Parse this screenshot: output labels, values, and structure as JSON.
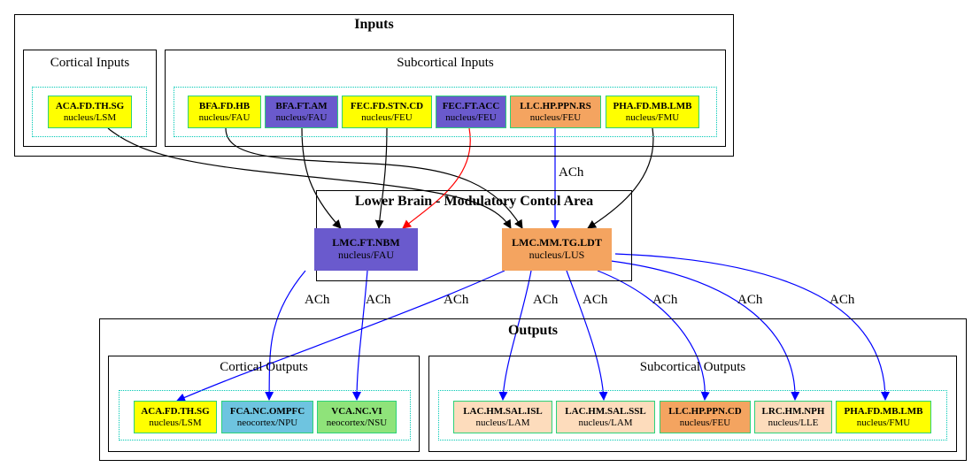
{
  "colors": {
    "yellow": "#ffff00",
    "slateblue": "#6a5acd",
    "sandybrown": "#f4a460",
    "bisque": "#fddcbc",
    "skyblue": "#6ec4e0",
    "lightgreen": "#8fe37a",
    "black_edge": "#000000",
    "blue_edge": "#0000ff",
    "red_edge": "#ff0000",
    "dotted_border": "#00c8b4"
  },
  "clusters": {
    "inputs": "Inputs",
    "cortical_inputs": "Cortical Inputs",
    "subcortical_inputs": "Subcortical Inputs",
    "lower_brain": "Lower Brain - Modulatory Contol Area",
    "outputs": "Outputs",
    "cortical_outputs": "Cortical Outputs",
    "subcortical_outputs": "Subcortical Outputs"
  },
  "nodes": {
    "in_aca": {
      "name": "ACA.FD.TH.SG",
      "sub": "nucleus/LSM"
    },
    "in_bfa": {
      "name": "BFA.FD.HB",
      "sub": "nucleus/FAU"
    },
    "in_bfa_ft": {
      "name": "BFA.FT.AM",
      "sub": "nucleus/FAU"
    },
    "in_fec_stn": {
      "name": "FEC.FD.STN.CD",
      "sub": "nucleus/FEU"
    },
    "in_fec_acc": {
      "name": "FEC.FT.ACC",
      "sub": "nucleus/FEU"
    },
    "in_llc": {
      "name": "LLC.HP.PPN.RS",
      "sub": "nucleus/FEU"
    },
    "in_pha": {
      "name": "PHA.FD.MB.LMB",
      "sub": "nucleus/FMU"
    },
    "lmc_nbm": {
      "name": "LMC.FT.NBM",
      "sub": "nucleus/FAU"
    },
    "lmc_ldt": {
      "name": "LMC.MM.TG.LDT",
      "sub": "nucleus/LUS"
    },
    "out_aca": {
      "name": "ACA.FD.TH.SG",
      "sub": "nucleus/LSM"
    },
    "out_fca": {
      "name": "FCA.NC.OMPFC",
      "sub": "neocortex/NPU"
    },
    "out_vca": {
      "name": "VCA.NC.VI",
      "sub": "neocortex/NSU"
    },
    "out_lac_isl": {
      "name": "LAC.HM.SAL.ISL",
      "sub": "nucleus/LAM"
    },
    "out_lac_ssl": {
      "name": "LAC.HM.SAL.SSL",
      "sub": "nucleus/LAM"
    },
    "out_llc": {
      "name": "LLC.HP.PPN.CD",
      "sub": "nucleus/FEU"
    },
    "out_lrc": {
      "name": "LRC.HM.NPH",
      "sub": "nucleus/LLE"
    },
    "out_pha": {
      "name": "PHA.FD.MB.LMB",
      "sub": "nucleus/FMU"
    }
  },
  "edge_labels": {
    "llc_to_ldt": "ACh",
    "nbm_to_fca": "ACh",
    "nbm_to_vca": "ACh",
    "ldt_to_aca": "ACh",
    "ldt_to_isl": "ACh",
    "ldt_to_ssl": "ACh",
    "ldt_to_llc": "ACh",
    "ldt_to_lrc": "ACh",
    "ldt_to_pha": "ACh"
  }
}
